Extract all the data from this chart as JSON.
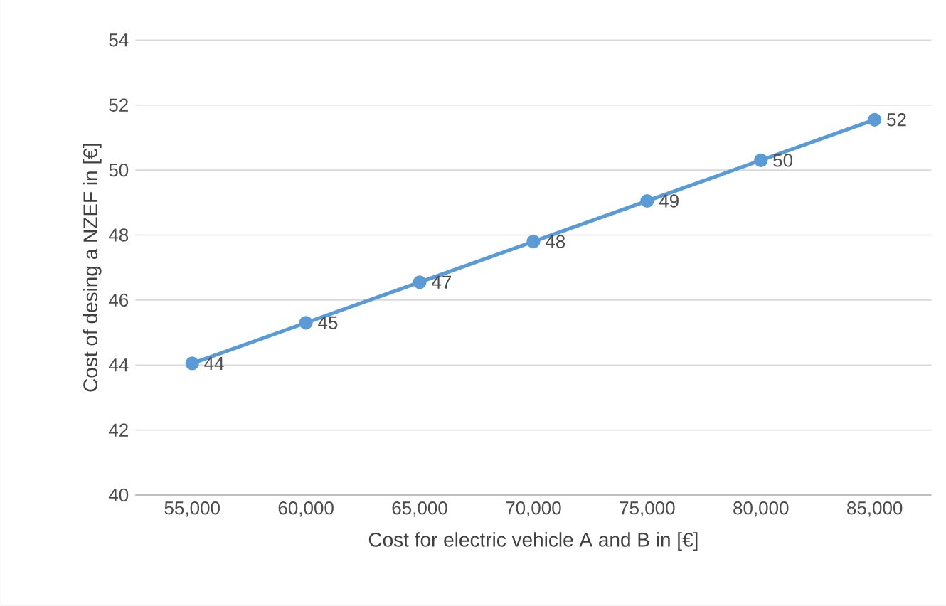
{
  "chart_data": {
    "type": "line",
    "xlabel": "Cost for electric vehicle A and B in [€]",
    "ylabel": "Cost of desing a NZEF in [€]",
    "categories": [
      "55,000",
      "60,000",
      "65,000",
      "70,000",
      "75,000",
      "80,000",
      "85,000"
    ],
    "series": [
      {
        "color": "#5b9bd5",
        "values": [
          44.05,
          45.3,
          46.55,
          47.8,
          49.05,
          50.3,
          51.55
        ],
        "value_labels": [
          "44",
          "45",
          "47",
          "48",
          "49",
          "50",
          "52"
        ]
      }
    ],
    "ylim": [
      40,
      54
    ],
    "yticks": [
      40,
      42,
      44,
      46,
      48,
      50,
      52,
      54
    ],
    "grid": "y",
    "marker": "circle",
    "line_style": "solid"
  }
}
